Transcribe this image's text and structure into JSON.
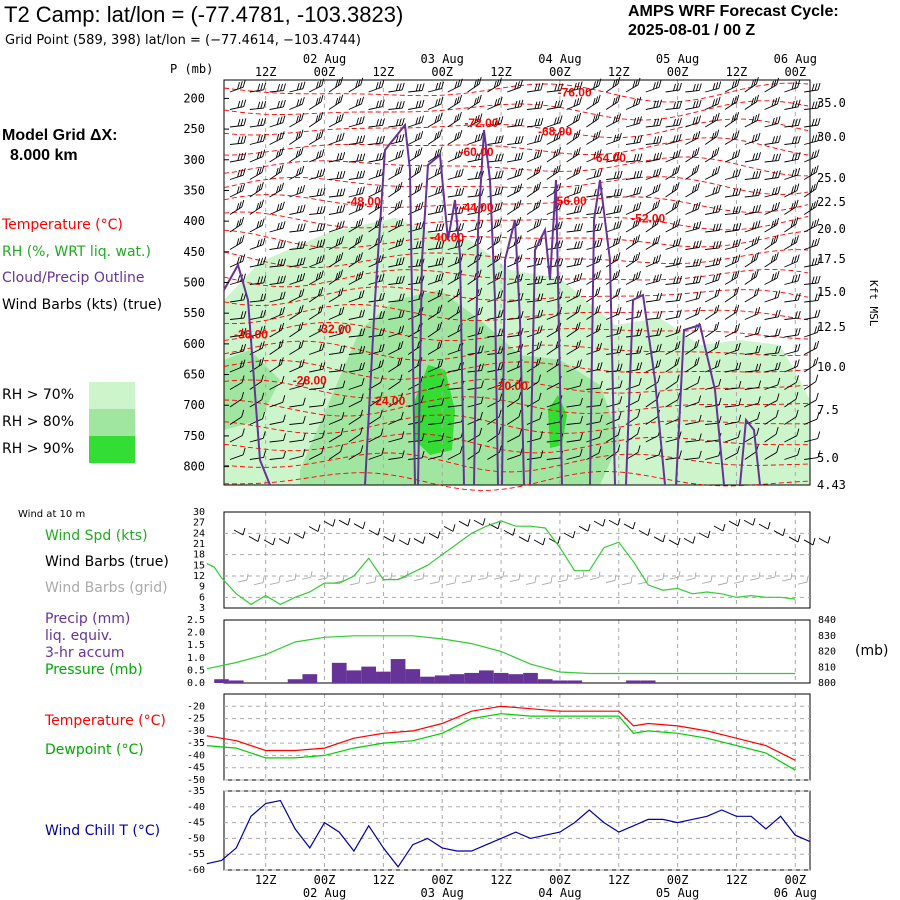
{
  "header": {
    "title": "T2 Camp:  lat/lon = (-77.4781, -103.3823)",
    "subtitle": "Grid Point (589, 398) lat/lon = (−77.4614, −103.4744)",
    "cycle_line1": "AMPS WRF Forecast Cycle:",
    "cycle_line2": "2025-08-01 / 00  Z"
  },
  "left_labels": {
    "grid_line1": "Model Grid ΔX:",
    "grid_line2": "8.000 km",
    "temperature": "Temperature (°C)",
    "rh": "RH (%, WRT liq. wat.)",
    "cloud": "Cloud/Precip Outline",
    "wind_barbs": "Wind Barbs (kts) (true)",
    "rh70": "RH > 70%",
    "rh80": "RH > 80%",
    "rh90": "RH > 90%"
  },
  "colors": {
    "temperature": "#ff0000",
    "rh": "#22aa22",
    "rh70": "#ccf5cc",
    "rh80": "#a0e6a0",
    "rh90": "#33dd33",
    "cloud": "#663399",
    "dewpoint": "#00cc00",
    "windchill": "#0000aa",
    "precip": "#663399",
    "grid_barbs": "#aaaaaa"
  },
  "time_axis": {
    "top_ticks": [
      "12Z",
      "00Z",
      "12Z",
      "00Z",
      "12Z",
      "00Z",
      "12Z",
      "00Z",
      "12Z",
      "00Z"
    ],
    "top_dates": [
      "02 Aug",
      "03 Aug",
      "04 Aug",
      "05 Aug",
      "06 Aug"
    ],
    "bottom_ticks": [
      "12Z",
      "00Z",
      "12Z",
      "00Z",
      "12Z",
      "00Z",
      "12Z",
      "00Z",
      "12Z",
      "00Z"
    ],
    "bottom_dates": [
      "02 Aug",
      "03 Aug",
      "04 Aug",
      "05 Aug",
      "06 Aug"
    ]
  },
  "chart_data": [
    {
      "type": "heatmap",
      "name": "time-height cross section",
      "y_left_label": "P (mb)",
      "y_right_label": "Kft MSL",
      "pressure_ticks": [
        200,
        250,
        300,
        350,
        400,
        450,
        500,
        550,
        600,
        650,
        700,
        750,
        800
      ],
      "kft_ticks": [
        "35.0",
        "30.0",
        "25.0",
        "22.5",
        "20.0",
        "17.5",
        "15.0",
        "12.5",
        "10.0",
        "7.5",
        "5.0",
        "4.43"
      ],
      "temperature_contour_labels": [
        {
          "label": "-76.00",
          "hour": 75,
          "p": 190
        },
        {
          "label": "-72.00",
          "hour": 56,
          "p": 240
        },
        {
          "label": "-68.00",
          "hour": 71,
          "p": 254
        },
        {
          "label": "-60.00",
          "hour": 55,
          "p": 287
        },
        {
          "label": "-64.00",
          "hour": 82,
          "p": 297
        },
        {
          "label": "-48.00",
          "hour": 32,
          "p": 368
        },
        {
          "label": "-56.00",
          "hour": 74,
          "p": 367
        },
        {
          "label": "-44.00",
          "hour": 55,
          "p": 378
        },
        {
          "label": "-52.00",
          "hour": 90,
          "p": 396
        },
        {
          "label": "-40.00",
          "hour": 49,
          "p": 427
        },
        {
          "label": "-36.00",
          "hour": 9,
          "p": 585
        },
        {
          "label": "-32.00",
          "hour": 26,
          "p": 576
        },
        {
          "label": "-28.00",
          "hour": 21,
          "p": 660
        },
        {
          "label": "-24.00",
          "hour": 37,
          "p": 693
        },
        {
          "label": "-20.00",
          "hour": 62,
          "p": 669
        }
      ]
    },
    {
      "type": "line",
      "name": "surface wind",
      "header_label": "Wind at 10 m",
      "labels": [
        "Wind Spd (kts)",
        "Wind Barbs (true)",
        "Wind Barbs (grid)"
      ],
      "yticks": [
        3,
        6,
        9,
        12,
        15,
        18,
        21,
        24,
        27,
        30
      ],
      "ylim": [
        3,
        30
      ],
      "series": [
        {
          "name": "Wind Spd (kts)",
          "points": [
            [
              0,
              15.5
            ],
            [
              1.5,
              14.5
            ],
            [
              3,
              11.5
            ],
            [
              6,
              7
            ],
            [
              9,
              4
            ],
            [
              12,
              6.5
            ],
            [
              15,
              4
            ],
            [
              18,
              6
            ],
            [
              21,
              7.5
            ],
            [
              24,
              10
            ],
            [
              27,
              10
            ],
            [
              30,
              12
            ],
            [
              33,
              17
            ],
            [
              36,
              11
            ],
            [
              39,
              11
            ],
            [
              42,
              13
            ],
            [
              45,
              15
            ],
            [
              48,
              18
            ],
            [
              51,
              21
            ],
            [
              54,
              24
            ],
            [
              57,
              26
            ],
            [
              60,
              27.5
            ],
            [
              63,
              26
            ],
            [
              66,
              26
            ],
            [
              69,
              25.5
            ],
            [
              72,
              20
            ],
            [
              75,
              13.5
            ],
            [
              78,
              13.5
            ],
            [
              81,
              20
            ],
            [
              84,
              21.5
            ],
            [
              87,
              16
            ],
            [
              90,
              9.5
            ],
            [
              93,
              8
            ],
            [
              96,
              8.5
            ],
            [
              99,
              7
            ],
            [
              102,
              7.5
            ],
            [
              105,
              7
            ],
            [
              108,
              6
            ],
            [
              111,
              6.5
            ],
            [
              114,
              6
            ],
            [
              117,
              6
            ],
            [
              120,
              5.5
            ]
          ]
        }
      ]
    },
    {
      "type": "bar",
      "name": "precipitation and pressure",
      "labels": [
        "Precip (mm)",
        "liq. equiv.",
        "3-hr accum",
        "Pressure (mb)"
      ],
      "right_unit": "(mb)",
      "yticks_left": [
        "0.0",
        "0.5",
        "1.0",
        "1.5",
        "2.0",
        "2.5"
      ],
      "yticks_right": [
        800,
        810,
        820,
        830,
        840
      ],
      "precip_bars": [
        [
          3,
          0.15
        ],
        [
          6,
          0.1
        ],
        [
          18,
          0.15
        ],
        [
          21,
          0.35
        ],
        [
          27,
          0.8
        ],
        [
          30,
          0.5
        ],
        [
          33,
          0.65
        ],
        [
          36,
          0.45
        ],
        [
          39,
          0.95
        ],
        [
          42,
          0.55
        ],
        [
          45,
          0.25
        ],
        [
          48,
          0.3
        ],
        [
          51,
          0.35
        ],
        [
          54,
          0.4
        ],
        [
          57,
          0.5
        ],
        [
          60,
          0.4
        ],
        [
          63,
          0.35
        ],
        [
          66,
          0.4
        ],
        [
          69,
          0.15
        ],
        [
          72,
          0.1
        ],
        [
          75,
          0.1
        ],
        [
          87,
          0.1
        ],
        [
          90,
          0.1
        ]
      ],
      "pressure": [
        [
          0,
          809
        ],
        [
          6,
          813
        ],
        [
          12,
          818
        ],
        [
          18,
          826
        ],
        [
          24,
          829
        ],
        [
          30,
          830
        ],
        [
          36,
          830
        ],
        [
          42,
          830
        ],
        [
          48,
          828
        ],
        [
          54,
          825
        ],
        [
          60,
          820
        ],
        [
          66,
          812
        ],
        [
          72,
          807
        ],
        [
          78,
          806
        ],
        [
          84,
          806
        ],
        [
          90,
          806
        ],
        [
          96,
          806
        ],
        [
          102,
          806
        ],
        [
          108,
          806
        ],
        [
          114,
          806
        ],
        [
          120,
          806
        ]
      ]
    },
    {
      "type": "line",
      "name": "temperature and dewpoint",
      "labels": [
        "Temperature (°C)",
        "Dewpoint (°C)"
      ],
      "yticks": [
        -20,
        -25,
        -30,
        -35,
        -40,
        -45,
        -50
      ],
      "ylim": [
        -50,
        -15
      ],
      "series": [
        {
          "name": "Temperature (°C)",
          "points": [
            [
              0,
              -32
            ],
            [
              6,
              -34
            ],
            [
              12,
              -38
            ],
            [
              18,
              -38
            ],
            [
              24,
              -37
            ],
            [
              30,
              -33
            ],
            [
              36,
              -31
            ],
            [
              42,
              -30
            ],
            [
              48,
              -27
            ],
            [
              54,
              -22
            ],
            [
              60,
              -20
            ],
            [
              66,
              -21
            ],
            [
              72,
              -22
            ],
            [
              78,
              -22
            ],
            [
              84,
              -22
            ],
            [
              87,
              -28
            ],
            [
              90,
              -27
            ],
            [
              96,
              -28
            ],
            [
              102,
              -30
            ],
            [
              108,
              -33
            ],
            [
              114,
              -36
            ],
            [
              120,
              -42
            ]
          ]
        },
        {
          "name": "Dewpoint (°C)",
          "points": [
            [
              0,
              -36
            ],
            [
              6,
              -37
            ],
            [
              12,
              -41
            ],
            [
              18,
              -41
            ],
            [
              24,
              -40
            ],
            [
              30,
              -37
            ],
            [
              36,
              -35
            ],
            [
              42,
              -34
            ],
            [
              48,
              -31
            ],
            [
              54,
              -25
            ],
            [
              60,
              -23
            ],
            [
              66,
              -24
            ],
            [
              72,
              -24
            ],
            [
              78,
              -24
            ],
            [
              84,
              -24
            ],
            [
              87,
              -31
            ],
            [
              90,
              -30
            ],
            [
              96,
              -31
            ],
            [
              102,
              -33
            ],
            [
              108,
              -36
            ],
            [
              114,
              -39
            ],
            [
              120,
              -46
            ]
          ]
        }
      ]
    },
    {
      "type": "line",
      "name": "wind chill",
      "labels": [
        "Wind Chill T (°C)"
      ],
      "yticks": [
        -35,
        -40,
        -45,
        -50,
        -55,
        -60
      ],
      "ylim": [
        -60,
        -35
      ],
      "series": [
        {
          "name": "Wind Chill T (°C)",
          "points": [
            [
              0,
              -58
            ],
            [
              3,
              -57
            ],
            [
              6,
              -53
            ],
            [
              9,
              -43
            ],
            [
              12,
              -39
            ],
            [
              15,
              -38
            ],
            [
              18,
              -47
            ],
            [
              21,
              -53
            ],
            [
              24,
              -45
            ],
            [
              27,
              -48
            ],
            [
              30,
              -54
            ],
            [
              33,
              -46
            ],
            [
              36,
              -53
            ],
            [
              39,
              -59
            ],
            [
              42,
              -52
            ],
            [
              45,
              -50
            ],
            [
              48,
              -53
            ],
            [
              51,
              -54
            ],
            [
              54,
              -54
            ],
            [
              57,
              -52
            ],
            [
              60,
              -50
            ],
            [
              63,
              -48
            ],
            [
              66,
              -50
            ],
            [
              69,
              -49
            ],
            [
              72,
              -48
            ],
            [
              75,
              -45
            ],
            [
              78,
              -41
            ],
            [
              81,
              -45
            ],
            [
              84,
              -48
            ],
            [
              87,
              -46
            ],
            [
              90,
              -44
            ],
            [
              93,
              -44
            ],
            [
              96,
              -45
            ],
            [
              99,
              -44
            ],
            [
              102,
              -43
            ],
            [
              105,
              -41
            ],
            [
              108,
              -43
            ],
            [
              111,
              -43
            ],
            [
              114,
              -47
            ],
            [
              117,
              -43
            ],
            [
              120,
              -49
            ],
            [
              123,
              -51
            ]
          ]
        }
      ]
    }
  ]
}
